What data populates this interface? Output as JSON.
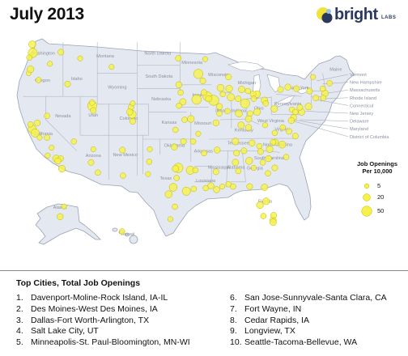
{
  "title": "July 2013",
  "logo": {
    "word": "bright",
    "sub": "LABS"
  },
  "state_labels": [
    {
      "name": "Washington",
      "lon": -120.5,
      "lat": 47.4
    },
    {
      "name": "Oregon",
      "lon": -120.6,
      "lat": 43.9
    },
    {
      "name": "Idaho",
      "lon": -114.6,
      "lat": 44.1
    },
    {
      "name": "Montana",
      "lon": -109.6,
      "lat": 47.0
    },
    {
      "name": "Wyoming",
      "lon": -107.5,
      "lat": 43.0
    },
    {
      "name": "Nevada",
      "lon": -117.0,
      "lat": 39.3
    },
    {
      "name": "Utah",
      "lon": -111.7,
      "lat": 39.4
    },
    {
      "name": "California",
      "lon": -120.5,
      "lat": 37.0
    },
    {
      "name": "Arizona",
      "lon": -111.7,
      "lat": 34.2
    },
    {
      "name": "Colorado",
      "lon": -105.5,
      "lat": 39.0
    },
    {
      "name": "New Mexico",
      "lon": -106.1,
      "lat": 34.3
    },
    {
      "name": "North Dakota",
      "lon": -100.4,
      "lat": 47.4
    },
    {
      "name": "South Dakota",
      "lon": -100.2,
      "lat": 44.4
    },
    {
      "name": "Nebraska",
      "lon": -99.8,
      "lat": 41.5
    },
    {
      "name": "Kansas",
      "lon": -98.4,
      "lat": 38.5
    },
    {
      "name": "Oklahoma",
      "lon": -97.5,
      "lat": 35.5
    },
    {
      "name": "Texas",
      "lon": -99.0,
      "lat": 31.3
    },
    {
      "name": "Minnesota",
      "lon": -94.4,
      "lat": 46.2
    },
    {
      "name": "Iowa",
      "lon": -93.5,
      "lat": 42.0
    },
    {
      "name": "Missouri",
      "lon": -92.5,
      "lat": 38.4
    },
    {
      "name": "Arkansas",
      "lon": -92.4,
      "lat": 34.8
    },
    {
      "name": "Louisiana",
      "lon": -92.0,
      "lat": 31.0
    },
    {
      "name": "Wisconsin",
      "lon": -89.8,
      "lat": 44.6
    },
    {
      "name": "Illinois",
      "lon": -89.2,
      "lat": 40.0
    },
    {
      "name": "Michigan",
      "lon": -84.8,
      "lat": 43.6
    },
    {
      "name": "Indiana",
      "lon": -86.2,
      "lat": 40.0
    },
    {
      "name": "Ohio",
      "lon": -82.7,
      "lat": 40.3
    },
    {
      "name": "Kentucky",
      "lon": -85.3,
      "lat": 37.5
    },
    {
      "name": "Tennessee",
      "lon": -86.3,
      "lat": 35.8
    },
    {
      "name": "Mississippi",
      "lon": -89.7,
      "lat": 32.7
    },
    {
      "name": "Alabama",
      "lon": -86.7,
      "lat": 32.7
    },
    {
      "name": "Georgia",
      "lon": -83.4,
      "lat": 32.6
    },
    {
      "name": "Florida",
      "lon": -81.6,
      "lat": 28.3
    },
    {
      "name": "South Carolina",
      "lon": -80.9,
      "lat": 33.9
    },
    {
      "name": "North Carolina",
      "lon": -79.4,
      "lat": 35.6
    },
    {
      "name": "Virginia",
      "lon": -78.6,
      "lat": 37.6
    },
    {
      "name": "West Virginia",
      "lon": -80.6,
      "lat": 38.7
    },
    {
      "name": "Pennsylvania",
      "lon": -77.6,
      "lat": 40.9
    },
    {
      "name": "New York",
      "lon": -75.6,
      "lat": 42.9
    },
    {
      "name": "Maine",
      "lon": -69.2,
      "lat": 45.3
    },
    {
      "name": "Alaska",
      "lon": -150.0,
      "lat": 64.0
    },
    {
      "name": "Hawaii",
      "lon": -157.0,
      "lat": 20.5
    }
  ],
  "callout_labels": [
    {
      "name": "Vermont",
      "lon": -72.6,
      "lat": 44.0
    },
    {
      "name": "New Hampshire",
      "lon": -71.5,
      "lat": 43.6
    },
    {
      "name": "Massachusetts",
      "lon": -71.8,
      "lat": 42.3
    },
    {
      "name": "Rhode Island",
      "lon": -71.5,
      "lat": 41.7
    },
    {
      "name": "Connecticut",
      "lon": -72.7,
      "lat": 41.6
    },
    {
      "name": "New Jersey",
      "lon": -74.5,
      "lat": 40.1
    },
    {
      "name": "Delaware",
      "lon": -75.5,
      "lat": 39.0
    },
    {
      "name": "Maryland",
      "lon": -76.7,
      "lat": 39.0
    },
    {
      "name": "District of Columbia",
      "lon": -77.0,
      "lat": 38.9
    }
  ],
  "legend": {
    "title_line1": "Job Openings",
    "title_line2": "Per 10,000",
    "items": [
      {
        "label": "5",
        "value": 5
      },
      {
        "label": "20",
        "value": 20
      },
      {
        "label": "50",
        "value": 50
      }
    ]
  },
  "colors": {
    "land": "#e4e8f0",
    "state_border": "#b0b6c4",
    "bubble_fill": "#f7f24a",
    "bubble_stroke": "#bdb600",
    "outside": "#ffffff"
  },
  "bubbles": [
    {
      "lon": -122.3,
      "lat": 47.6,
      "v": 40
    },
    {
      "lon": -122.4,
      "lat": 48.7,
      "v": 20
    },
    {
      "lon": -117.4,
      "lat": 47.7,
      "v": 12
    },
    {
      "lon": -122.9,
      "lat": 47.0,
      "v": 10
    },
    {
      "lon": -123.0,
      "lat": 45.0,
      "v": 8
    },
    {
      "lon": -122.7,
      "lat": 45.5,
      "v": 18
    },
    {
      "lon": -121.3,
      "lat": 44.1,
      "v": 10
    },
    {
      "lon": -119.3,
      "lat": 46.2,
      "v": 8
    },
    {
      "lon": -116.2,
      "lat": 43.6,
      "v": 12
    },
    {
      "lon": -114.0,
      "lat": 46.9,
      "v": 8
    },
    {
      "lon": -122.4,
      "lat": 37.8,
      "v": 28
    },
    {
      "lon": -121.9,
      "lat": 37.3,
      "v": 30
    },
    {
      "lon": -121.5,
      "lat": 38.6,
      "v": 12
    },
    {
      "lon": -122.7,
      "lat": 38.4,
      "v": 10
    },
    {
      "lon": -121.1,
      "lat": 36.7,
      "v": 8
    },
    {
      "lon": -119.8,
      "lat": 36.7,
      "v": 10
    },
    {
      "lon": -119.0,
      "lat": 35.4,
      "v": 8
    },
    {
      "lon": -118.2,
      "lat": 34.0,
      "v": 20
    },
    {
      "lon": -117.4,
      "lat": 34.0,
      "v": 10
    },
    {
      "lon": -117.9,
      "lat": 33.7,
      "v": 14
    },
    {
      "lon": -117.2,
      "lat": 32.7,
      "v": 18
    },
    {
      "lon": -119.7,
      "lat": 34.4,
      "v": 8
    },
    {
      "lon": -119.8,
      "lat": 39.5,
      "v": 10
    },
    {
      "lon": -115.1,
      "lat": 36.2,
      "v": 10
    },
    {
      "lon": -111.9,
      "lat": 40.8,
      "v": 40
    },
    {
      "lon": -111.7,
      "lat": 40.2,
      "v": 12
    },
    {
      "lon": -111.9,
      "lat": 41.2,
      "v": 10
    },
    {
      "lon": -112.1,
      "lat": 33.5,
      "v": 12
    },
    {
      "lon": -110.9,
      "lat": 32.2,
      "v": 10
    },
    {
      "lon": -111.7,
      "lat": 35.2,
      "v": 8
    },
    {
      "lon": -104.9,
      "lat": 39.7,
      "v": 28
    },
    {
      "lon": -104.8,
      "lat": 38.8,
      "v": 12
    },
    {
      "lon": -105.1,
      "lat": 40.6,
      "v": 10
    },
    {
      "lon": -105.3,
      "lat": 40.0,
      "v": 14
    },
    {
      "lon": -108.5,
      "lat": 45.8,
      "v": 8
    },
    {
      "lon": -106.6,
      "lat": 35.1,
      "v": 12
    },
    {
      "lon": -106.5,
      "lat": 31.8,
      "v": 10
    },
    {
      "lon": -104.8,
      "lat": 41.1,
      "v": 8
    },
    {
      "lon": -96.8,
      "lat": 46.9,
      "v": 12
    },
    {
      "lon": -96.7,
      "lat": 43.5,
      "v": 14
    },
    {
      "lon": -96.0,
      "lat": 41.3,
      "v": 16
    },
    {
      "lon": -96.7,
      "lat": 40.8,
      "v": 10
    },
    {
      "lon": -97.3,
      "lat": 37.7,
      "v": 10
    },
    {
      "lon": -95.7,
      "lat": 39.0,
      "v": 10
    },
    {
      "lon": -94.6,
      "lat": 39.1,
      "v": 18
    },
    {
      "lon": -97.5,
      "lat": 35.5,
      "v": 14
    },
    {
      "lon": -95.9,
      "lat": 36.2,
      "v": 12
    },
    {
      "lon": -94.2,
      "lat": 36.2,
      "v": 10
    },
    {
      "lon": -93.3,
      "lat": 37.2,
      "v": 8
    },
    {
      "lon": -92.3,
      "lat": 34.7,
      "v": 10
    },
    {
      "lon": -96.8,
      "lat": 32.8,
      "v": 42
    },
    {
      "lon": -97.3,
      "lat": 32.7,
      "v": 16
    },
    {
      "lon": -97.7,
      "lat": 30.3,
      "v": 26
    },
    {
      "lon": -98.5,
      "lat": 29.4,
      "v": 20
    },
    {
      "lon": -95.4,
      "lat": 29.8,
      "v": 30
    },
    {
      "lon": -94.1,
      "lat": 30.1,
      "v": 10
    },
    {
      "lon": -97.4,
      "lat": 27.8,
      "v": 10
    },
    {
      "lon": -98.2,
      "lat": 26.2,
      "v": 8
    },
    {
      "lon": -101.9,
      "lat": 33.6,
      "v": 10
    },
    {
      "lon": -101.8,
      "lat": 35.2,
      "v": 8
    },
    {
      "lon": -102.1,
      "lat": 32.0,
      "v": 8
    },
    {
      "lon": -97.1,
      "lat": 31.5,
      "v": 10
    },
    {
      "lon": -94.7,
      "lat": 32.5,
      "v": 30
    },
    {
      "lon": -93.3,
      "lat": 44.9,
      "v": 40
    },
    {
      "lon": -92.5,
      "lat": 44.0,
      "v": 12
    },
    {
      "lon": -92.1,
      "lat": 46.8,
      "v": 8
    },
    {
      "lon": -93.6,
      "lat": 41.6,
      "v": 44
    },
    {
      "lon": -91.7,
      "lat": 42.0,
      "v": 38
    },
    {
      "lon": -90.6,
      "lat": 41.5,
      "v": 50
    },
    {
      "lon": -92.3,
      "lat": 42.5,
      "v": 12
    },
    {
      "lon": -96.4,
      "lat": 42.5,
      "v": 10
    },
    {
      "lon": -91.5,
      "lat": 41.7,
      "v": 14
    },
    {
      "lon": -89.4,
      "lat": 43.1,
      "v": 20
    },
    {
      "lon": -87.9,
      "lat": 43.0,
      "v": 18
    },
    {
      "lon": -88.0,
      "lat": 44.5,
      "v": 12
    },
    {
      "lon": -87.6,
      "lat": 41.9,
      "v": 22
    },
    {
      "lon": -89.6,
      "lat": 39.8,
      "v": 10
    },
    {
      "lon": -89.0,
      "lat": 42.3,
      "v": 10
    },
    {
      "lon": -89.6,
      "lat": 40.7,
      "v": 14
    },
    {
      "lon": -88.2,
      "lat": 40.1,
      "v": 10
    },
    {
      "lon": -90.2,
      "lat": 38.6,
      "v": 14
    },
    {
      "lon": -86.2,
      "lat": 39.8,
      "v": 20
    },
    {
      "lon": -85.1,
      "lat": 41.1,
      "v": 40
    },
    {
      "lon": -86.3,
      "lat": 41.7,
      "v": 12
    },
    {
      "lon": -83.0,
      "lat": 42.3,
      "v": 18
    },
    {
      "lon": -85.7,
      "lat": 42.9,
      "v": 16
    },
    {
      "lon": -84.6,
      "lat": 42.7,
      "v": 10
    },
    {
      "lon": -83.7,
      "lat": 42.3,
      "v": 12
    },
    {
      "lon": -81.7,
      "lat": 41.5,
      "v": 16
    },
    {
      "lon": -83.0,
      "lat": 40.0,
      "v": 18
    },
    {
      "lon": -84.5,
      "lat": 39.1,
      "v": 16
    },
    {
      "lon": -84.2,
      "lat": 39.8,
      "v": 10
    },
    {
      "lon": -83.6,
      "lat": 41.7,
      "v": 10
    },
    {
      "lon": -81.5,
      "lat": 41.1,
      "v": 10
    },
    {
      "lon": -80.0,
      "lat": 40.4,
      "v": 16
    },
    {
      "lon": -75.2,
      "lat": 40.0,
      "v": 16
    },
    {
      "lon": -76.9,
      "lat": 40.3,
      "v": 10
    },
    {
      "lon": -76.3,
      "lat": 40.0,
      "v": 10
    },
    {
      "lon": -75.5,
      "lat": 40.6,
      "v": 12
    },
    {
      "lon": -74.0,
      "lat": 40.7,
      "v": 18
    },
    {
      "lon": -73.8,
      "lat": 42.7,
      "v": 12
    },
    {
      "lon": -76.1,
      "lat": 43.0,
      "v": 12
    },
    {
      "lon": -77.6,
      "lat": 43.2,
      "v": 14
    },
    {
      "lon": -78.9,
      "lat": 42.9,
      "v": 12
    },
    {
      "lon": -71.1,
      "lat": 42.4,
      "v": 16
    },
    {
      "lon": -71.4,
      "lat": 41.8,
      "v": 10
    },
    {
      "lon": -72.7,
      "lat": 41.8,
      "v": 12
    },
    {
      "lon": -71.5,
      "lat": 43.0,
      "v": 10
    },
    {
      "lon": -70.3,
      "lat": 43.7,
      "v": 10
    },
    {
      "lon": -73.2,
      "lat": 44.5,
      "v": 8
    },
    {
      "lon": -76.6,
      "lat": 39.3,
      "v": 12
    },
    {
      "lon": -77.0,
      "lat": 38.9,
      "v": 14
    },
    {
      "lon": -77.4,
      "lat": 37.5,
      "v": 12
    },
    {
      "lon": -76.3,
      "lat": 36.9,
      "v": 12
    },
    {
      "lon": -79.9,
      "lat": 37.3,
      "v": 10
    },
    {
      "lon": -78.5,
      "lat": 38.0,
      "v": 10
    },
    {
      "lon": -81.6,
      "lat": 38.3,
      "v": 8
    },
    {
      "lon": -80.8,
      "lat": 35.2,
      "v": 18
    },
    {
      "lon": -78.6,
      "lat": 35.8,
      "v": 20
    },
    {
      "lon": -79.8,
      "lat": 36.1,
      "v": 14
    },
    {
      "lon": -80.2,
      "lat": 36.1,
      "v": 10
    },
    {
      "lon": -82.6,
      "lat": 35.6,
      "v": 10
    },
    {
      "lon": -77.9,
      "lat": 34.2,
      "v": 10
    },
    {
      "lon": -81.0,
      "lat": 34.0,
      "v": 14
    },
    {
      "lon": -82.4,
      "lat": 34.9,
      "v": 12
    },
    {
      "lon": -79.9,
      "lat": 32.8,
      "v": 12
    },
    {
      "lon": -84.4,
      "lat": 33.7,
      "v": 20
    },
    {
      "lon": -81.1,
      "lat": 32.1,
      "v": 10
    },
    {
      "lon": -83.6,
      "lat": 32.8,
      "v": 8
    },
    {
      "lon": -82.0,
      "lat": 33.5,
      "v": 10
    },
    {
      "lon": -86.8,
      "lat": 36.2,
      "v": 18
    },
    {
      "lon": -85.3,
      "lat": 35.0,
      "v": 12
    },
    {
      "lon": -83.9,
      "lat": 36.0,
      "v": 14
    },
    {
      "lon": -90.0,
      "lat": 35.1,
      "v": 14
    },
    {
      "lon": -85.8,
      "lat": 38.3,
      "v": 16
    },
    {
      "lon": -84.5,
      "lat": 38.0,
      "v": 14
    },
    {
      "lon": -86.8,
      "lat": 33.5,
      "v": 16
    },
    {
      "lon": -86.6,
      "lat": 34.7,
      "v": 12
    },
    {
      "lon": -86.3,
      "lat": 32.4,
      "v": 10
    },
    {
      "lon": -88.0,
      "lat": 30.7,
      "v": 10
    },
    {
      "lon": -90.2,
      "lat": 32.3,
      "v": 12
    },
    {
      "lon": -89.1,
      "lat": 30.4,
      "v": 8
    },
    {
      "lon": -90.1,
      "lat": 30.0,
      "v": 14
    },
    {
      "lon": -91.1,
      "lat": 30.5,
      "v": 14
    },
    {
      "lon": -93.8,
      "lat": 32.5,
      "v": 10
    },
    {
      "lon": -92.0,
      "lat": 30.2,
      "v": 10
    },
    {
      "lon": -81.7,
      "lat": 30.3,
      "v": 16
    },
    {
      "lon": -81.4,
      "lat": 28.5,
      "v": 18
    },
    {
      "lon": -82.5,
      "lat": 28.0,
      "v": 18
    },
    {
      "lon": -80.2,
      "lat": 26.1,
      "v": 14
    },
    {
      "lon": -80.2,
      "lat": 25.8,
      "v": 16
    },
    {
      "lon": -81.9,
      "lat": 26.6,
      "v": 10
    },
    {
      "lon": -84.3,
      "lat": 30.4,
      "v": 12
    },
    {
      "lon": -87.2,
      "lat": 30.4,
      "v": 10
    },
    {
      "lon": -80.1,
      "lat": 26.7,
      "v": 12
    },
    {
      "lon": -149.9,
      "lat": 61.2,
      "v": 14
    },
    {
      "lon": -147.7,
      "lat": 64.8,
      "v": 8
    },
    {
      "lon": -157.9,
      "lat": 21.3,
      "v": 10
    }
  ],
  "top_cities": {
    "title": "Top Cities, Total Job Openings",
    "items": [
      {
        "num": "1.",
        "name": "Davenport-Moline-Rock Island, IA-IL"
      },
      {
        "num": "2.",
        "name": "Des Moines-West Des Moines, IA"
      },
      {
        "num": "3.",
        "name": "Dallas-Fort Worth-Arlington, TX"
      },
      {
        "num": "4.",
        "name": "Salt Lake City, UT"
      },
      {
        "num": "5.",
        "name": "Minneapolis-St. Paul-Bloomington, MN-WI"
      },
      {
        "num": "6.",
        "name": "San Jose-Sunnyvale-Santa Clara, CA"
      },
      {
        "num": "7.",
        "name": "Fort Wayne, IN"
      },
      {
        "num": "8.",
        "name": "Cedar Rapids, IA"
      },
      {
        "num": "9.",
        "name": "Longview, TX"
      },
      {
        "num": "10.",
        "name": "Seattle-Tacoma-Bellevue, WA"
      }
    ]
  }
}
